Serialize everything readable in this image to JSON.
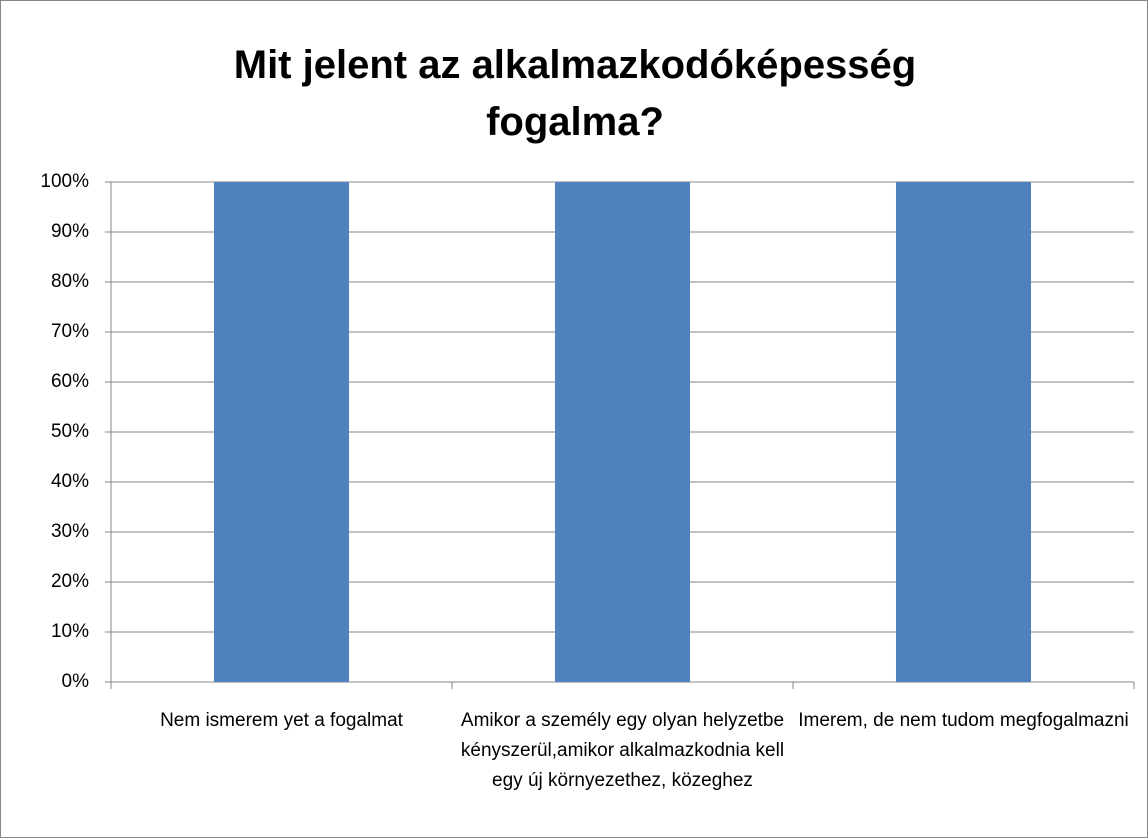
{
  "chart_data": {
    "type": "bar",
    "title": "Mit jelent az alkalmazkodóképesség fogalma?",
    "categories": [
      "Nem ismerem yet a fogalmat",
      "Amikor a személy egy olyan helyzetbe kényszerül,amikor alkalmazkodnia kell egy új környezethez, közeghez",
      "Imerem, de nem tudom megfogalmazni"
    ],
    "values": [
      100,
      100,
      100
    ],
    "color": "#4f81bd",
    "ylim": [
      0,
      100
    ],
    "yticks": [
      {
        "value": 0,
        "label": "0%"
      },
      {
        "value": 10,
        "label": "10%"
      },
      {
        "value": 20,
        "label": "20%"
      },
      {
        "value": 30,
        "label": "30%"
      },
      {
        "value": 40,
        "label": "40%"
      },
      {
        "value": 50,
        "label": "50%"
      },
      {
        "value": 60,
        "label": "60%"
      },
      {
        "value": 70,
        "label": "70%"
      },
      {
        "value": 80,
        "label": "80%"
      },
      {
        "value": 90,
        "label": "90%"
      },
      {
        "value": 100,
        "label": "100%"
      }
    ],
    "grid": true
  }
}
